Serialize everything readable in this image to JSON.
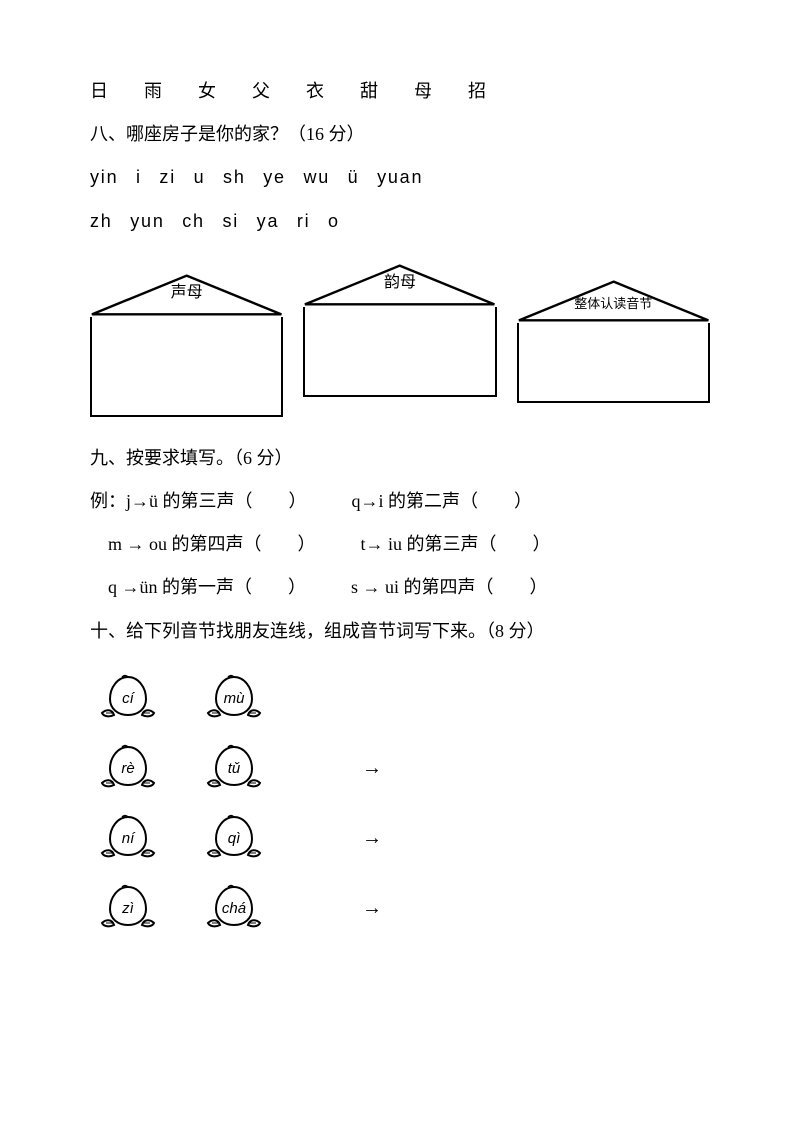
{
  "top_chars": "日　雨　女　父　衣　甜　母　招",
  "section8": {
    "title": "八、哪座房子是你的家？（16 分）",
    "line1": "yin  i  zi  u  sh  ye  wu  ü  yuan",
    "line2": "zh  yun  ch  si  ya  ri  o"
  },
  "houses": [
    {
      "label": "声母",
      "small": false
    },
    {
      "label": "韵母",
      "small": false
    },
    {
      "label": "整体认读音节",
      "small": true
    }
  ],
  "section9": {
    "title": "九、按要求填写。（6 分）",
    "rows": [
      {
        "left": "例：j→ü 的第三声（　　）",
        "right": "q→i 的第二声（　　）"
      },
      {
        "left": "　m → ou 的第四声（　　）",
        "right": "t→ iu 的第三声（　　）"
      },
      {
        "left": "　q →ün 的第一声（　　）",
        "right": "s → ui 的第四声（　　）"
      }
    ]
  },
  "section10": {
    "title": "十、给下列音节找朋友连线，组成音节词写下来。（8 分）",
    "pairs": [
      {
        "left": "cí",
        "right": "mù",
        "arrow": false
      },
      {
        "left": "rè",
        "right": "tǔ",
        "arrow": true
      },
      {
        "left": "ní",
        "right": "qì",
        "arrow": true
      },
      {
        "left": "zì",
        "right": "chá",
        "arrow": true
      }
    ]
  },
  "colors": {
    "text": "#000000",
    "background": "#ffffff",
    "stroke": "#000000"
  }
}
